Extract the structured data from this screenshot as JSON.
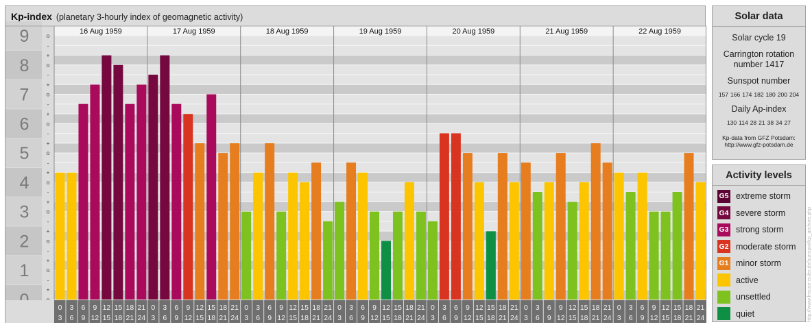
{
  "header": {
    "title": "Kp-index",
    "subtitle": "(planetary 3-hourly index of geomagnetic activity)"
  },
  "chart_data": {
    "type": "bar",
    "title": "Kp-index",
    "subtitle": "(planetary 3-hourly index of geomagnetic activity)",
    "y_range": [
      0,
      9
    ],
    "y_ticks": [
      "0",
      "1",
      "2",
      "3",
      "4",
      "5",
      "6",
      "7",
      "8",
      "9"
    ],
    "y_minor_ticks": [
      "o",
      "+",
      "-"
    ],
    "days": [
      "16 Aug 1959",
      "17 Aug 1959",
      "18 Aug 1959",
      "19 Aug 1959",
      "20 Aug 1959",
      "21 Aug 1959",
      "22 Aug 1959"
    ],
    "intervals_top": [
      "0",
      "3",
      "6",
      "9",
      "12",
      "15",
      "18",
      "21"
    ],
    "intervals_bottom": [
      "3",
      "6",
      "9",
      "12",
      "15",
      "18",
      "21",
      "24"
    ],
    "values": [
      [
        4.33,
        4.33,
        6.67,
        7.33,
        8.33,
        8.0,
        6.67,
        7.33
      ],
      [
        7.67,
        8.33,
        6.67,
        6.33,
        5.33,
        7.0,
        5.0,
        5.33
      ],
      [
        3.0,
        4.33,
        5.33,
        3.0,
        4.33,
        4.0,
        4.67,
        2.67
      ],
      [
        3.33,
        4.67,
        4.33,
        3.0,
        2.0,
        3.0,
        4.0,
        3.0
      ],
      [
        2.67,
        5.67,
        5.67,
        5.0,
        4.0,
        2.33,
        5.0,
        4.0
      ],
      [
        4.67,
        3.67,
        4.0,
        5.0,
        3.33,
        4.0,
        5.33,
        4.67
      ],
      [
        4.33,
        3.67,
        4.33,
        3.0,
        3.0,
        3.67,
        5.0,
        4.0
      ]
    ],
    "colors": {
      "G5": "#5c0535",
      "G4": "#74083f",
      "G3": "#a90a5b",
      "G2": "#d9341f",
      "G1": "#e67d1e",
      "active": "#fcc500",
      "unsettled": "#7ec21f",
      "quiet": "#0f8f44"
    }
  },
  "solar_data": {
    "title": "Solar data",
    "solar_cycle": "Solar cycle 19",
    "carrington": "Carrington rotation number 1417",
    "sunspot_title": "Sunspot number",
    "sunspot_values": [
      "157",
      "166",
      "174",
      "182",
      "180",
      "200",
      "204"
    ],
    "ap_title": "Daily Ap-index",
    "ap_values": [
      "130",
      "114",
      "28",
      "21",
      "38",
      "34",
      "27"
    ],
    "source_line1": "Kp-data from GFZ Potsdam:",
    "source_line2": "http://www.gfz-potsdam.de"
  },
  "activity_levels": {
    "title": "Activity levels",
    "items": [
      {
        "code": "G5",
        "label": "extreme storm",
        "color": "#5c0535"
      },
      {
        "code": "G4",
        "label": "severe storm",
        "color": "#74083f"
      },
      {
        "code": "G3",
        "label": "strong storm",
        "color": "#a90a5b"
      },
      {
        "code": "G2",
        "label": "moderate storm",
        "color": "#d9341f"
      },
      {
        "code": "G1",
        "label": "minor storm",
        "color": "#e67d1e"
      },
      {
        "code": "",
        "label": "active",
        "color": "#fcc500"
      },
      {
        "code": "",
        "label": "unsettled",
        "color": "#7ec21f"
      },
      {
        "code": "",
        "label": "quiet",
        "color": "#0f8f44"
      }
    ]
  },
  "credit": "http://www.freuse-euler.de/sunspot/kp_archive.php"
}
